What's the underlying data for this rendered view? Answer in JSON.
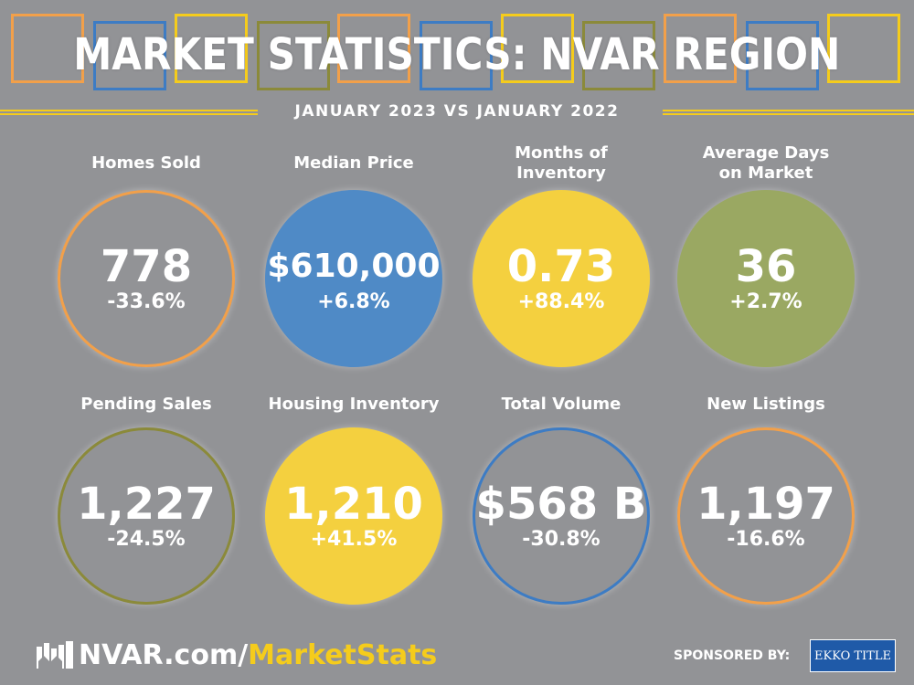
{
  "header": {
    "title": "MARKET STATISTICS: NVAR REGION",
    "subtitle": "JANUARY 2023 VS JANUARY 2022"
  },
  "colors": {
    "background": "#929396",
    "orange": "#f2a04a",
    "blue": "#3d7cc4",
    "yellow": "#f5cc1c",
    "olive": "#8b8a3a",
    "green": "#9aa862"
  },
  "stats": [
    {
      "label": "Homes Sold",
      "value": "778",
      "change": "-33.6%",
      "style": "orange-outline"
    },
    {
      "label": "Median Price",
      "value": "$610,000",
      "change": "+6.8%",
      "style": "blue-fill"
    },
    {
      "label": "Months of Inventory",
      "value": "0.73",
      "change": "+88.4%",
      "style": "yellow-fill"
    },
    {
      "label": "Average Days on Market",
      "value": "36",
      "change": "+2.7%",
      "style": "green-fill"
    },
    {
      "label": "Pending Sales",
      "value": "1,227",
      "change": "-24.5%",
      "style": "olive-outline"
    },
    {
      "label": "Housing Inventory",
      "value": "1,210",
      "change": "+41.5%",
      "style": "yellow-fill"
    },
    {
      "label": "Total Volume",
      "value": "$568 B",
      "change": "-30.8%",
      "style": "blue-outline"
    },
    {
      "label": "New Listings",
      "value": "1,197",
      "change": "-16.6%",
      "style": "orange-outline"
    }
  ],
  "footer": {
    "url_prefix": "NVAR.com/",
    "url_highlight": "MarketStats",
    "sponsored_label": "SPONSORED BY:",
    "sponsor_logo_text": "EKKO TITLE"
  }
}
